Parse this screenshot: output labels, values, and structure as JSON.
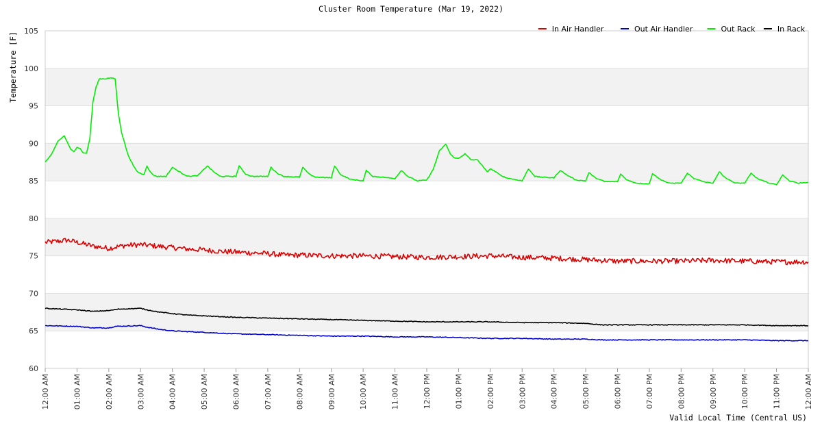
{
  "chart_data": {
    "type": "line",
    "title": "Cluster Room Temperature (Mar 19, 2022)",
    "xlabel": "Valid Local Time (Central US)",
    "ylabel": "Temperature [F]",
    "ylim": [
      60,
      105
    ],
    "yticks": [
      60,
      65,
      70,
      75,
      80,
      85,
      90,
      95,
      100,
      105
    ],
    "xlim": [
      0,
      24
    ],
    "xticks": [
      0,
      1,
      2,
      3,
      4,
      5,
      6,
      7,
      8,
      9,
      10,
      11,
      12,
      13,
      14,
      15,
      16,
      17,
      18,
      19,
      20,
      21,
      22,
      23,
      24
    ],
    "xtick_labels": [
      "12:00 AM",
      "01:00 AM",
      "02:00 AM",
      "03:00 AM",
      "04:00 AM",
      "05:00 AM",
      "06:00 AM",
      "07:00 AM",
      "08:00 AM",
      "09:00 AM",
      "10:00 AM",
      "11:00 AM",
      "12:00 PM",
      "01:00 PM",
      "02:00 PM",
      "03:00 PM",
      "04:00 PM",
      "05:00 PM",
      "06:00 PM",
      "07:00 PM",
      "08:00 PM",
      "09:00 PM",
      "10:00 PM",
      "11:00 PM",
      "12:00 AM"
    ],
    "legend_position": "top-right",
    "series": [
      {
        "name": "In Air Handler",
        "color": "#dd0000",
        "x": [
          0,
          0.3,
          0.7,
          1.0,
          1.5,
          2.0,
          2.5,
          3.0,
          3.5,
          4.0,
          4.5,
          5.0,
          5.5,
          6.0,
          6.5,
          7.0,
          7.5,
          8.0,
          9.0,
          10.0,
          11.0,
          12.0,
          13.0,
          14.0,
          15.0,
          16.0,
          16.5,
          17.0,
          18.0,
          19.0,
          20.0,
          21.0,
          22.0,
          23.0,
          24.0
        ],
        "y": [
          76.8,
          76.9,
          77.1,
          76.8,
          76.3,
          76.0,
          76.4,
          76.5,
          76.3,
          76.1,
          75.9,
          75.8,
          75.6,
          75.5,
          75.4,
          75.3,
          75.1,
          75.1,
          75.0,
          75.0,
          74.9,
          74.8,
          74.9,
          75.0,
          74.8,
          74.7,
          74.6,
          74.5,
          74.3,
          74.3,
          74.3,
          74.4,
          74.3,
          74.2,
          74.2
        ],
        "noise": 0.35
      },
      {
        "name": "Out Air Handler",
        "color": "#0000cc",
        "x": [
          0,
          1.0,
          1.5,
          2.0,
          2.2,
          3.0,
          3.2,
          3.6,
          4.0,
          4.5,
          5.0,
          5.5,
          6.0,
          7.0,
          8.0,
          9.0,
          10.0,
          11.0,
          12.0,
          13.0,
          14.0,
          15.0,
          16.0,
          17.0,
          17.5,
          18.0,
          19.0,
          20.0,
          22.0,
          23.0,
          24.0
        ],
        "y": [
          65.7,
          65.6,
          65.4,
          65.4,
          65.6,
          65.7,
          65.5,
          65.2,
          65.0,
          64.9,
          64.8,
          64.7,
          64.6,
          64.5,
          64.4,
          64.3,
          64.3,
          64.2,
          64.2,
          64.1,
          64.0,
          64.0,
          63.9,
          63.9,
          63.8,
          63.8,
          63.8,
          63.8,
          63.8,
          63.7,
          63.7
        ],
        "noise": 0.05
      },
      {
        "name": "Out Rack",
        "color": "#00ee00",
        "x": [
          0,
          0.2,
          0.4,
          0.6,
          0.8,
          0.9,
          1.0,
          1.1,
          1.2,
          1.3,
          1.4,
          1.5,
          1.6,
          1.7,
          1.8,
          1.9,
          2.0,
          2.1,
          2.2,
          2.3,
          2.4,
          2.6,
          2.8,
          2.9,
          3.0,
          3.1,
          3.2,
          3.3,
          3.4,
          3.5,
          3.6,
          3.8,
          4.0,
          4.15,
          4.3,
          4.5,
          4.8,
          5.1,
          5.3,
          5.5,
          5.8,
          6.0,
          6.1,
          6.3,
          6.5,
          7.0,
          7.1,
          7.3,
          7.5,
          8.0,
          8.1,
          8.3,
          8.5,
          9.0,
          9.1,
          9.3,
          9.6,
          10.0,
          10.1,
          10.3,
          10.6,
          11.0,
          11.2,
          11.4,
          11.7,
          12.0,
          12.2,
          12.4,
          12.6,
          12.75,
          12.9,
          13.0,
          13.2,
          13.4,
          13.6,
          13.9,
          14.0,
          14.1,
          14.3,
          14.5,
          15.0,
          15.2,
          15.4,
          15.6,
          16.0,
          16.2,
          16.4,
          16.7,
          17.0,
          17.1,
          17.3,
          17.6,
          18.0,
          18.1,
          18.3,
          18.6,
          19.0,
          19.1,
          19.3,
          19.6,
          20.0,
          20.2,
          20.4,
          20.7,
          21.0,
          21.2,
          21.4,
          21.7,
          22.0,
          22.2,
          22.4,
          22.7,
          23.0,
          23.2,
          23.4,
          23.7,
          24.0
        ],
        "y": [
          87.5,
          88.5,
          90.3,
          91.0,
          89.2,
          88.9,
          89.5,
          89.3,
          88.7,
          88.7,
          90.5,
          95.5,
          97.5,
          98.6,
          98.6,
          98.6,
          98.7,
          98.7,
          98.6,
          94.0,
          91.5,
          88.5,
          86.8,
          86.2,
          86.0,
          85.8,
          87.0,
          86.2,
          85.8,
          85.6,
          85.6,
          85.6,
          86.8,
          86.4,
          86.0,
          85.6,
          85.7,
          87.0,
          86.2,
          85.6,
          85.6,
          85.6,
          87.0,
          85.9,
          85.6,
          85.6,
          86.8,
          86.0,
          85.6,
          85.5,
          86.8,
          85.9,
          85.5,
          85.4,
          87.0,
          85.8,
          85.2,
          85.0,
          86.4,
          85.6,
          85.5,
          85.3,
          86.4,
          85.6,
          85.0,
          85.1,
          86.5,
          89.0,
          89.9,
          88.5,
          88.0,
          88.0,
          88.6,
          87.8,
          87.8,
          86.2,
          86.6,
          86.4,
          85.8,
          85.4,
          85.0,
          86.6,
          85.6,
          85.5,
          85.4,
          86.4,
          85.8,
          85.1,
          85.0,
          86.1,
          85.4,
          84.9,
          84.9,
          85.9,
          85.1,
          84.7,
          84.6,
          86.0,
          85.3,
          84.7,
          84.7,
          86.0,
          85.3,
          84.9,
          84.7,
          86.2,
          85.4,
          84.7,
          84.7,
          86.0,
          85.3,
          84.8,
          84.5,
          85.8,
          85.0,
          84.7,
          84.8
        ],
        "noise": 0.05
      },
      {
        "name": "In Rack",
        "color": "#000000",
        "x": [
          0,
          1.0,
          1.5,
          2.0,
          2.3,
          3.0,
          3.2,
          3.6,
          4.0,
          4.5,
          5.0,
          5.5,
          6.0,
          7.0,
          8.0,
          9.0,
          10.0,
          11.0,
          12.0,
          13.0,
          14.0,
          15.0,
          16.0,
          17.0,
          17.5,
          18.0,
          19.0,
          20.0,
          22.0,
          23.0,
          24.0
        ],
        "y": [
          68.0,
          67.8,
          67.6,
          67.7,
          67.9,
          68.0,
          67.8,
          67.5,
          67.3,
          67.1,
          67.0,
          66.9,
          66.8,
          66.7,
          66.6,
          66.5,
          66.4,
          66.3,
          66.2,
          66.2,
          66.2,
          66.1,
          66.1,
          66.0,
          65.8,
          65.8,
          65.8,
          65.8,
          65.8,
          65.7,
          65.7
        ],
        "noise": 0.05
      }
    ]
  },
  "legend": {
    "items": [
      {
        "label": "In Air Handler",
        "color": "#dd0000"
      },
      {
        "label": "Out Air Handler",
        "color": "#0000cc"
      },
      {
        "label": "Out Rack",
        "color": "#00ee00"
      },
      {
        "label": "In Rack",
        "color": "#000000"
      }
    ]
  }
}
